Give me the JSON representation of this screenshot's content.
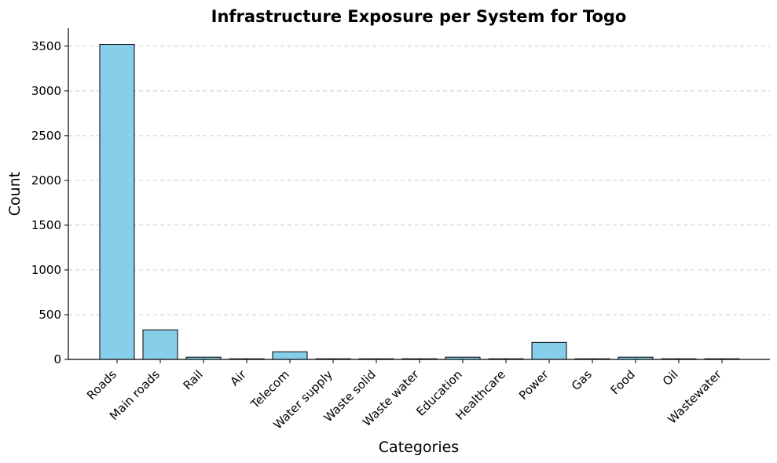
{
  "chart_data": {
    "type": "bar",
    "title": "Infrastructure Exposure per System for Togo",
    "xlabel": "Categories",
    "ylabel": "Count",
    "categories": [
      "Roads",
      "Main roads",
      "Rail",
      "Air",
      "Telecom",
      "Water supply",
      "Waste solid",
      "Waste water",
      "Education",
      "Healthcare",
      "Power",
      "Gas",
      "Food",
      "Oil",
      "Wastewater"
    ],
    "values": [
      3520,
      330,
      25,
      0,
      85,
      5,
      0,
      5,
      25,
      5,
      190,
      5,
      25,
      5,
      5
    ],
    "ylim": [
      0,
      3700
    ],
    "yticks": [
      0,
      500,
      1000,
      1500,
      2000,
      2500,
      3000,
      3500
    ],
    "grid": "y-dashed",
    "bar_color": "#87CEEB",
    "edge_color": "#000000"
  }
}
